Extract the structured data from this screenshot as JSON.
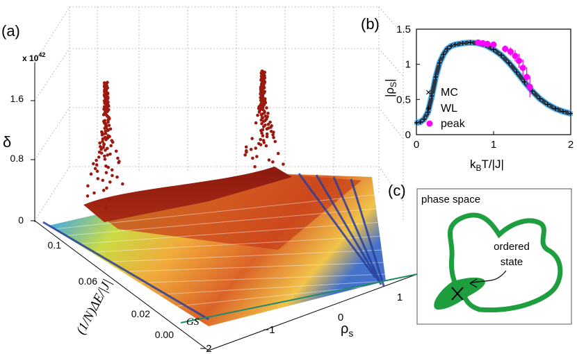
{
  "panel_labels": {
    "a": "(a)",
    "b": "(b)",
    "c": "(c)"
  },
  "chart_data": [
    {
      "id": "a",
      "type": "scatter",
      "title": "",
      "zlabel": "δ",
      "z_scale": "x 10",
      "z_scale_exp": "42",
      "z_ticks": [
        "0",
        "0.8",
        "1.6"
      ],
      "z_tick_values": [
        0,
        0.8,
        1.6
      ],
      "zlim": [
        0,
        2.0
      ],
      "ylabel": "(1/N)ΔE/|J|",
      "y_ticks": [
        "0.00",
        "0.02",
        "0.06",
        "0.1"
      ],
      "y_tick_values": [
        0.0,
        0.02,
        0.06,
        0.1
      ],
      "xlabel": "ρ",
      "xlabel_sub": "s",
      "x_ticks": [
        "−2",
        "−1",
        "0",
        "1"
      ],
      "x_tick_values": [
        -2,
        -1,
        0,
        1
      ],
      "annotation": "GS",
      "peaks": [
        {
          "rho": -0.9,
          "energy": 0.08,
          "delta": 1.85
        },
        {
          "rho": 0.6,
          "energy": 0.08,
          "delta": 2.0
        }
      ]
    },
    {
      "id": "b",
      "type": "scatter",
      "xlabel": "k",
      "xlabel_sub": "B",
      "xlabel_rest": "T/|J|",
      "ylabel": "|ρ",
      "ylabel_sub": "S",
      "ylabel_end": "|",
      "xlim": [
        0,
        2
      ],
      "ylim": [
        0,
        1.5
      ],
      "x_ticks": [
        "0",
        "1",
        "2"
      ],
      "x_tick_values": [
        0,
        1,
        2
      ],
      "y_ticks": [
        "0",
        "0.5",
        "1",
        "1.5"
      ],
      "y_tick_values": [
        0,
        0.5,
        1,
        1.5
      ],
      "legend": [
        "MC",
        "WL",
        "peak"
      ],
      "legend_loc": "bottom-left",
      "series": [
        {
          "name": "MC",
          "marker": "x",
          "color": "#3fa9f5",
          "x": [
            0.0,
            0.05,
            0.1,
            0.15,
            0.2,
            0.25,
            0.3,
            0.35,
            0.4,
            0.45,
            0.5,
            0.6,
            0.7,
            0.8,
            0.9,
            1.0,
            1.1,
            1.2,
            1.3,
            1.4,
            1.5,
            1.6,
            1.7,
            1.8,
            1.9,
            2.0
          ],
          "y": [
            0.17,
            0.18,
            0.22,
            0.32,
            0.55,
            0.82,
            1.02,
            1.14,
            1.22,
            1.26,
            1.28,
            1.3,
            1.31,
            1.3,
            1.27,
            1.21,
            1.13,
            1.02,
            0.89,
            0.75,
            0.62,
            0.51,
            0.43,
            0.37,
            0.33,
            0.3
          ]
        },
        {
          "name": "WL",
          "marker": "+",
          "color": "#000000",
          "x": [
            0.0,
            0.05,
            0.1,
            0.15,
            0.2,
            0.25,
            0.3,
            0.35,
            0.4,
            0.45,
            0.5,
            0.6,
            0.7,
            0.8,
            0.9,
            1.0,
            1.1,
            1.2,
            1.3,
            1.4,
            1.5,
            1.6,
            1.7,
            1.8,
            1.9,
            2.0
          ],
          "y": [
            0.17,
            0.18,
            0.22,
            0.32,
            0.55,
            0.82,
            1.02,
            1.14,
            1.22,
            1.26,
            1.28,
            1.3,
            1.31,
            1.3,
            1.27,
            1.21,
            1.13,
            1.02,
            0.89,
            0.75,
            0.62,
            0.51,
            0.43,
            0.37,
            0.33,
            0.3
          ]
        },
        {
          "name": "peak",
          "marker": "o",
          "color": "#ff00ff",
          "x": [
            0.8,
            0.86,
            0.92,
            1.0,
            1.15,
            1.22,
            1.28,
            1.33,
            1.38,
            1.43,
            1.47
          ],
          "y": [
            1.31,
            1.3,
            1.29,
            1.28,
            1.22,
            1.18,
            1.12,
            1.05,
            0.95,
            0.82,
            0.68
          ],
          "err": [
            0.02,
            0.02,
            0.03,
            0.03,
            0.05,
            0.06,
            0.08,
            0.1,
            0.12,
            0.14,
            0.15
          ]
        }
      ]
    }
  ],
  "diagram_c": {
    "title": "phase space",
    "annotation_line1": "ordered",
    "annotation_line2": "state",
    "colors": {
      "loop": "#1e9e3e"
    }
  }
}
